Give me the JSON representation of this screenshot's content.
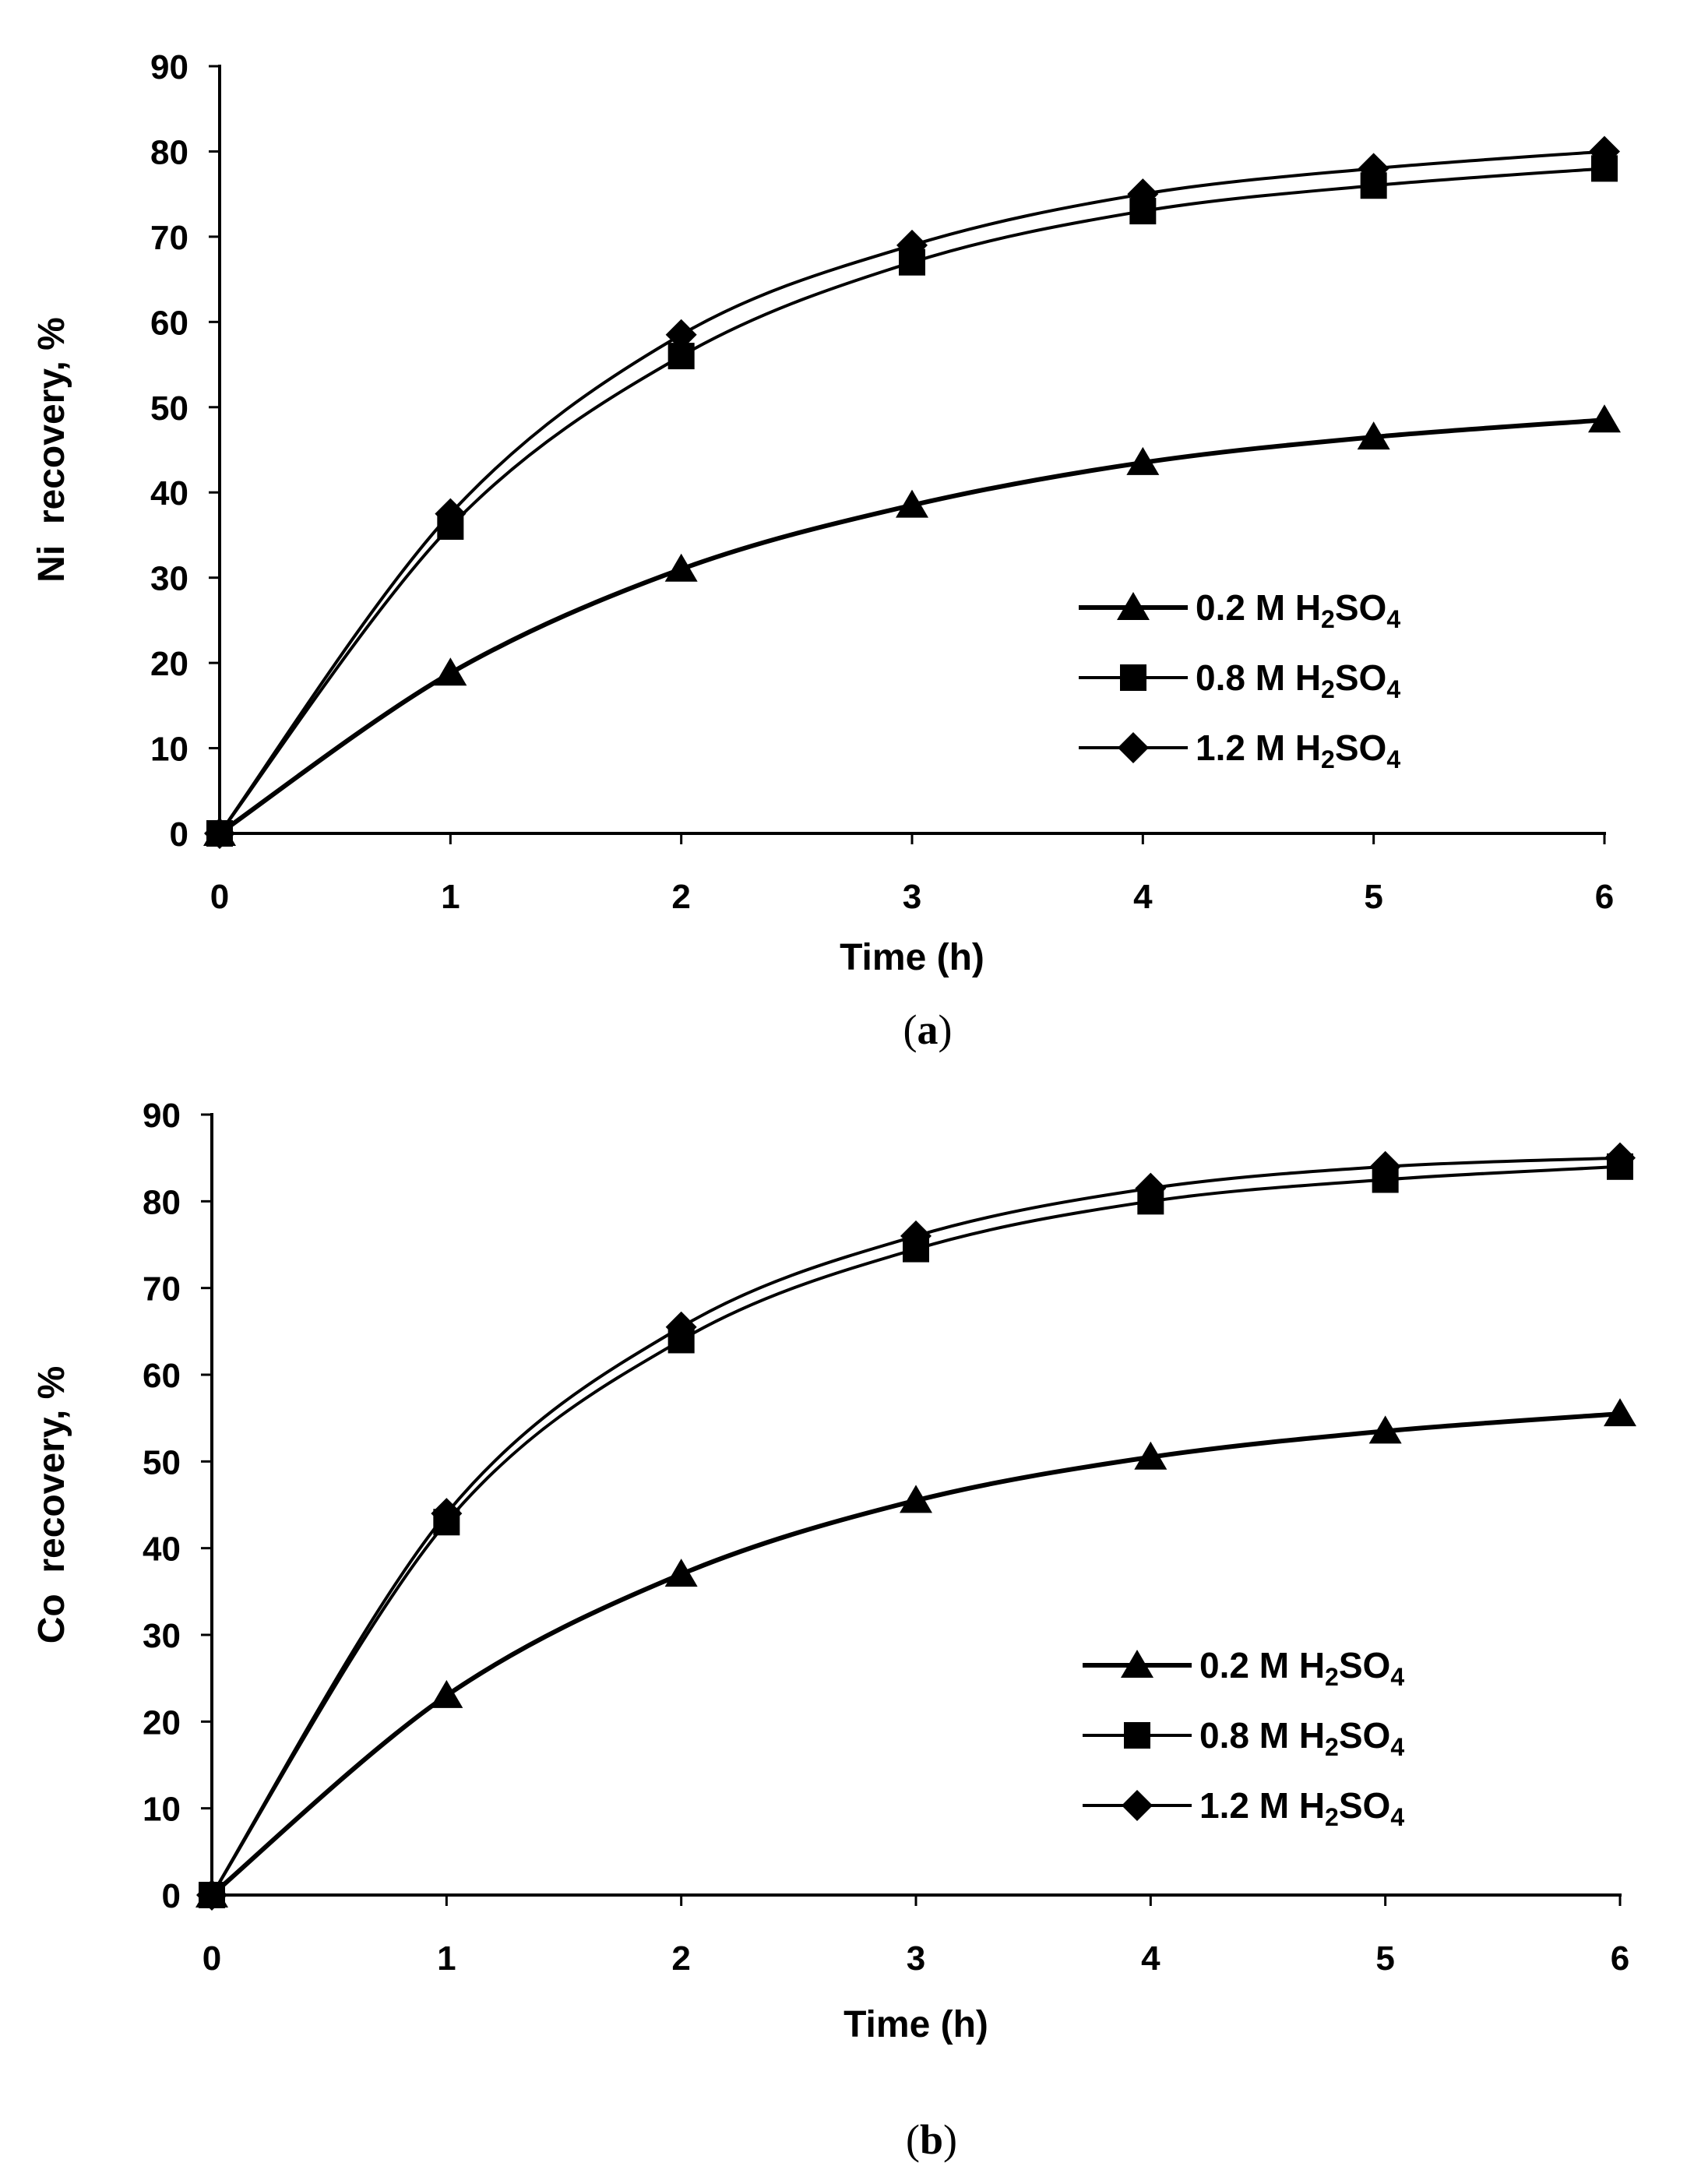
{
  "chart_data": [
    {
      "type": "line",
      "panel_label": "a",
      "ylabel": "Ni  recovery, %",
      "xlabel": "Time (h)",
      "xlim": [
        0,
        6
      ],
      "ylim": [
        0,
        90
      ],
      "xticks": [
        0,
        1,
        2,
        3,
        4,
        5,
        6
      ],
      "yticks": [
        0,
        10,
        20,
        30,
        40,
        50,
        60,
        70,
        80,
        90
      ],
      "legend_position": "center-right",
      "x": [
        0,
        1,
        2,
        3,
        4,
        5,
        6
      ],
      "series": [
        {
          "name": "0.2 M H2SO4",
          "label_main": "0.2 M H",
          "sub1": "2",
          "mid": "SO",
          "sub2": "4",
          "marker": "triangle",
          "values": [
            0,
            18.8,
            31,
            38.5,
            43.5,
            46.5,
            48.5
          ]
        },
        {
          "name": "0.8 M H2SO4",
          "label_main": "0.8 M H",
          "sub1": "2",
          "mid": "SO",
          "sub2": "4",
          "marker": "square",
          "values": [
            0,
            36,
            56,
            67,
            73,
            76,
            78
          ]
        },
        {
          "name": "1.2 M H2SO4",
          "label_main": "1.2 M H",
          "sub1": "2",
          "mid": "SO",
          "sub2": "4",
          "marker": "diamond",
          "values": [
            0,
            37.5,
            58.5,
            69,
            75,
            78,
            80
          ]
        }
      ]
    },
    {
      "type": "line",
      "panel_label": "b",
      "ylabel": "Co  recovery, %",
      "xlabel": "Time (h)",
      "xlim": [
        0,
        6
      ],
      "ylim": [
        0,
        90
      ],
      "xticks": [
        0,
        1,
        2,
        3,
        4,
        5,
        6
      ],
      "yticks": [
        0,
        10,
        20,
        30,
        40,
        50,
        60,
        70,
        80,
        90
      ],
      "legend_position": "center-right",
      "x": [
        0,
        1,
        2,
        3,
        4,
        5,
        6
      ],
      "series": [
        {
          "name": "0.2 M H2SO4",
          "label_main": "0.2 M H",
          "sub1": "2",
          "mid": "SO",
          "sub2": "4",
          "marker": "triangle",
          "values": [
            0,
            23,
            37,
            45.5,
            50.5,
            53.5,
            55.5
          ]
        },
        {
          "name": "0.8 M H2SO4",
          "label_main": "0.8 M H",
          "sub1": "2",
          "mid": "SO",
          "sub2": "4",
          "marker": "square",
          "values": [
            0,
            43,
            64,
            74.5,
            80,
            82.5,
            84
          ]
        },
        {
          "name": "1.2 M H2SO4",
          "label_main": "1.2 M H",
          "sub1": "2",
          "mid": "SO",
          "sub2": "4",
          "marker": "diamond",
          "values": [
            0,
            44,
            65.5,
            76,
            81.5,
            84,
            85
          ]
        }
      ]
    }
  ]
}
